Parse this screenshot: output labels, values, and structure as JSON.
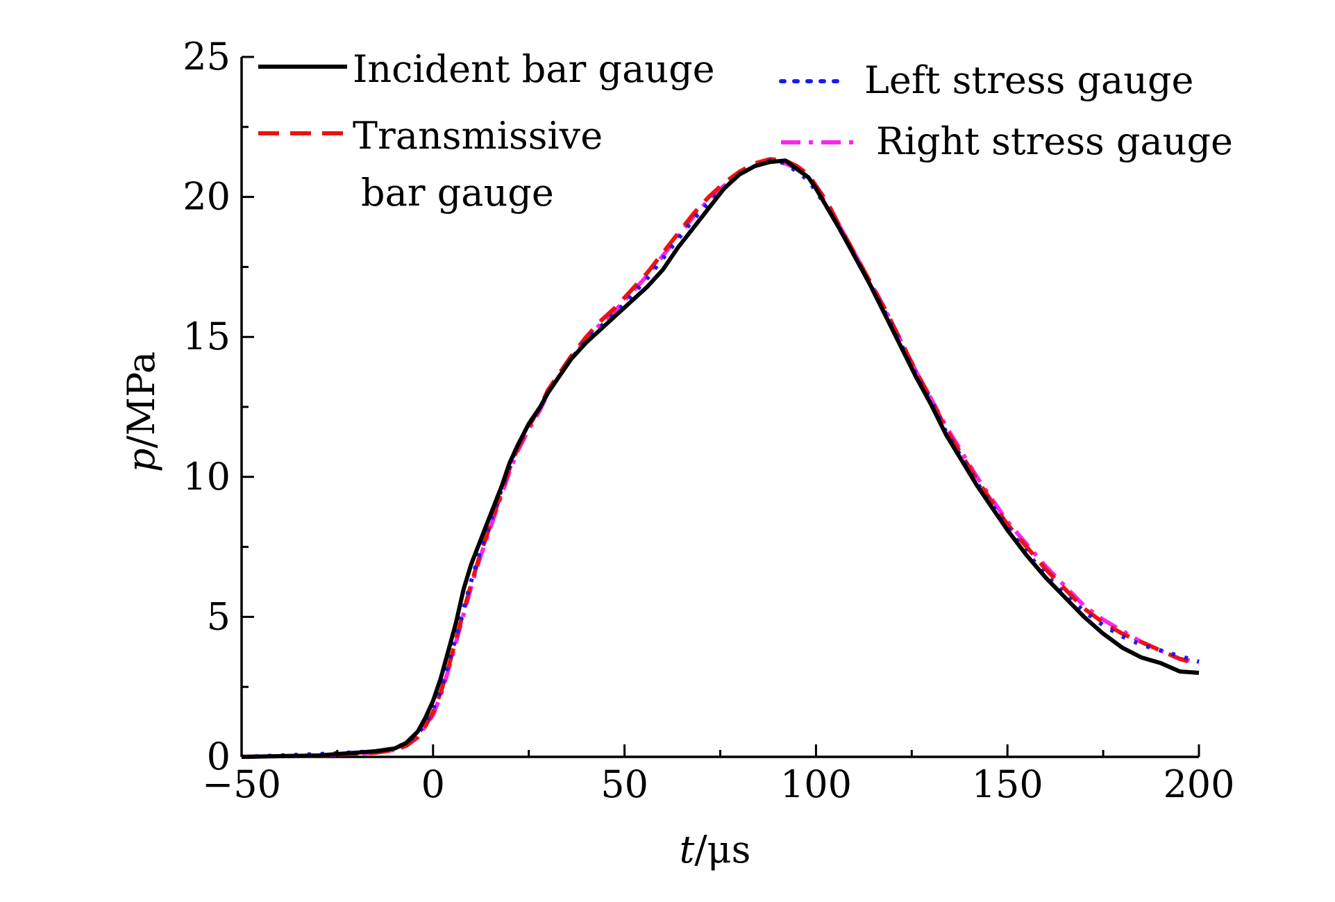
{
  "chart_data": {
    "type": "line",
    "xlabel": {
      "var": "t",
      "unit": "/μs"
    },
    "ylabel": {
      "var": "p",
      "unit": "/MPa"
    },
    "xlim": [
      -50,
      200
    ],
    "ylim": [
      0,
      25
    ],
    "xticks": [
      -50,
      0,
      50,
      100,
      150,
      200
    ],
    "xtick_labels": [
      "−50",
      "0",
      "50",
      "100",
      "150",
      "200"
    ],
    "yticks": [
      0,
      5,
      10,
      15,
      20,
      25
    ],
    "ytick_labels": [
      "0",
      "5",
      "10",
      "15",
      "20",
      "25"
    ],
    "grid": false,
    "legend_position": "top",
    "series": [
      {
        "name": "Incident bar gauge",
        "color": "#000000",
        "style": "solid",
        "x": [
          -50,
          -30,
          -15,
          -10,
          -7,
          -4,
          -2,
          0,
          2,
          4,
          6,
          8,
          10,
          12,
          14,
          16,
          18,
          20,
          22,
          25,
          28,
          30,
          33,
          36,
          40,
          44,
          48,
          52,
          56,
          60,
          64,
          68,
          72,
          76,
          80,
          84,
          88,
          92,
          95,
          98,
          100,
          103,
          106,
          110,
          114,
          118,
          122,
          126,
          130,
          134,
          138,
          142,
          146,
          150,
          155,
          160,
          165,
          170,
          175,
          180,
          185,
          190,
          195,
          200
        ],
        "y": [
          0.0,
          0.05,
          0.2,
          0.3,
          0.5,
          0.9,
          1.4,
          2.0,
          2.8,
          3.8,
          4.8,
          6.0,
          6.9,
          7.6,
          8.3,
          9.0,
          9.7,
          10.5,
          11.1,
          11.9,
          12.5,
          13.0,
          13.6,
          14.2,
          14.8,
          15.3,
          15.8,
          16.3,
          16.8,
          17.4,
          18.2,
          18.9,
          19.6,
          20.3,
          20.8,
          21.1,
          21.25,
          21.3,
          21.0,
          20.7,
          20.3,
          19.6,
          18.9,
          17.9,
          16.9,
          15.8,
          14.7,
          13.6,
          12.6,
          11.5,
          10.6,
          9.7,
          8.9,
          8.1,
          7.2,
          6.4,
          5.7,
          5.0,
          4.4,
          3.9,
          3.55,
          3.35,
          3.05,
          3.0
        ]
      },
      {
        "name": "Transmissive bar gauge",
        "color": "#ee1111",
        "style": "dashed",
        "x": [
          -50,
          -30,
          -15,
          -10,
          -7,
          -4,
          -2,
          0,
          2,
          4,
          6,
          8,
          10,
          12,
          14,
          16,
          18,
          20,
          22,
          25,
          28,
          30,
          33,
          36,
          40,
          44,
          48,
          52,
          56,
          60,
          64,
          68,
          72,
          76,
          80,
          84,
          88,
          92,
          95,
          98,
          100,
          103,
          106,
          110,
          114,
          118,
          122,
          126,
          130,
          134,
          138,
          142,
          146,
          150,
          155,
          160,
          165,
          170,
          175,
          180,
          185,
          190,
          195,
          200
        ],
        "y": [
          0.0,
          0.05,
          0.15,
          0.25,
          0.4,
          0.7,
          1.1,
          1.6,
          2.3,
          3.2,
          4.2,
          5.2,
          6.2,
          7.1,
          7.9,
          8.7,
          9.5,
          10.3,
          11.0,
          11.8,
          12.5,
          13.1,
          13.7,
          14.3,
          15.0,
          15.6,
          16.1,
          16.7,
          17.3,
          18.0,
          18.7,
          19.4,
          20.0,
          20.5,
          20.9,
          21.2,
          21.35,
          21.3,
          21.1,
          20.8,
          20.4,
          19.8,
          19.0,
          18.0,
          17.0,
          16.0,
          14.9,
          13.8,
          12.8,
          11.7,
          10.8,
          9.9,
          9.1,
          8.3,
          7.5,
          6.7,
          6.0,
          5.3,
          4.8,
          4.4,
          4.1,
          3.8,
          3.5,
          3.3
        ]
      },
      {
        "name": "Left stress gauge",
        "color": "#1a1aee",
        "style": "dotted",
        "x": [
          -50,
          -30,
          -15,
          -10,
          -7,
          -4,
          -2,
          0,
          2,
          4,
          6,
          8,
          10,
          12,
          14,
          16,
          18,
          20,
          22,
          25,
          28,
          30,
          33,
          36,
          40,
          44,
          48,
          52,
          56,
          60,
          64,
          68,
          72,
          76,
          80,
          84,
          88,
          92,
          95,
          98,
          100,
          103,
          106,
          110,
          114,
          118,
          122,
          126,
          130,
          134,
          138,
          142,
          146,
          150,
          155,
          160,
          165,
          170,
          175,
          180,
          185,
          190,
          195,
          200
        ],
        "y": [
          0.0,
          0.1,
          0.2,
          0.3,
          0.5,
          0.8,
          1.2,
          1.7,
          2.4,
          3.3,
          4.3,
          5.3,
          6.3,
          7.2,
          8.0,
          8.8,
          9.6,
          10.4,
          11.1,
          11.9,
          12.5,
          13.0,
          13.6,
          14.2,
          14.9,
          15.4,
          15.9,
          16.5,
          17.1,
          17.8,
          18.5,
          19.2,
          19.8,
          20.3,
          20.8,
          21.1,
          21.3,
          21.2,
          20.9,
          20.6,
          20.2,
          19.6,
          18.9,
          17.9,
          16.9,
          15.9,
          14.8,
          13.7,
          12.7,
          11.6,
          10.7,
          9.8,
          9.0,
          8.2,
          7.3,
          6.5,
          5.8,
          5.2,
          4.7,
          4.3,
          4.0,
          3.8,
          3.6,
          3.4
        ]
      },
      {
        "name": "Right stress gauge",
        "color": "#ff22ee",
        "style": "dashdot",
        "x": [
          -50,
          -30,
          -15,
          -10,
          -7,
          -4,
          -2,
          0,
          2,
          4,
          6,
          8,
          10,
          12,
          14,
          16,
          18,
          20,
          22,
          25,
          28,
          30,
          33,
          36,
          40,
          44,
          48,
          52,
          56,
          60,
          64,
          68,
          72,
          76,
          80,
          84,
          88,
          92,
          95,
          98,
          100,
          103,
          106,
          110,
          114,
          118,
          122,
          126,
          130,
          134,
          138,
          142,
          146,
          150,
          155,
          160,
          165,
          170,
          175,
          180,
          185,
          190,
          195,
          200
        ],
        "y": [
          0.0,
          0.05,
          0.15,
          0.25,
          0.4,
          0.7,
          1.1,
          1.5,
          2.2,
          3.1,
          4.1,
          5.1,
          6.1,
          7.0,
          7.8,
          8.6,
          9.4,
          10.2,
          10.9,
          11.7,
          12.4,
          13.0,
          13.6,
          14.2,
          14.9,
          15.5,
          16.0,
          16.6,
          17.2,
          17.9,
          18.6,
          19.3,
          19.9,
          20.4,
          20.8,
          21.1,
          21.3,
          21.2,
          21.0,
          20.7,
          20.3,
          19.7,
          19.0,
          18.0,
          17.0,
          16.0,
          14.9,
          13.8,
          12.8,
          11.8,
          10.9,
          10.0,
          9.2,
          8.4,
          7.6,
          6.8,
          6.1,
          5.4,
          4.9,
          4.5,
          4.1,
          3.8,
          3.5,
          3.4
        ]
      }
    ],
    "legend": [
      {
        "lines": [
          "Incident bar gauge"
        ]
      },
      {
        "lines": [
          "Transmissive",
          "bar gauge"
        ]
      },
      {
        "lines": [
          "Left stress gauge"
        ]
      },
      {
        "lines": [
          "Right stress gauge"
        ]
      }
    ]
  }
}
